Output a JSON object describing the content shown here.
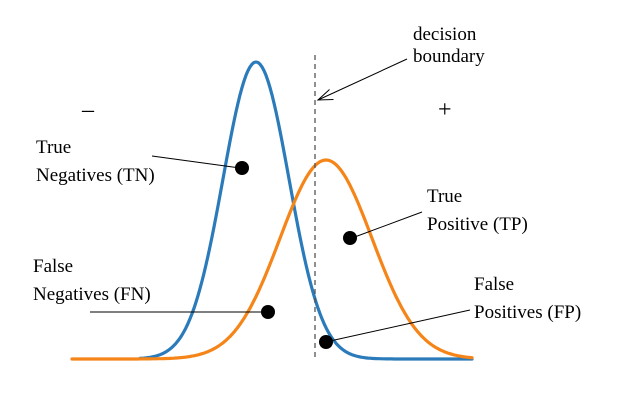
{
  "decision_boundary_label": [
    "decision",
    "boundary"
  ],
  "negative_sign": "–",
  "positive_sign": "+",
  "labels": {
    "tn": [
      "True",
      "Negatives (TN)"
    ],
    "fn": [
      "False",
      "Negatives (FN)"
    ],
    "tp": [
      "True",
      "Positive (TP)"
    ],
    "fp": [
      "False",
      "Positives (FP)"
    ]
  },
  "colors": {
    "negative_curve": "#2b7bba",
    "positive_curve": "#f58518",
    "boundary": "#555555",
    "text": "#000000"
  }
}
